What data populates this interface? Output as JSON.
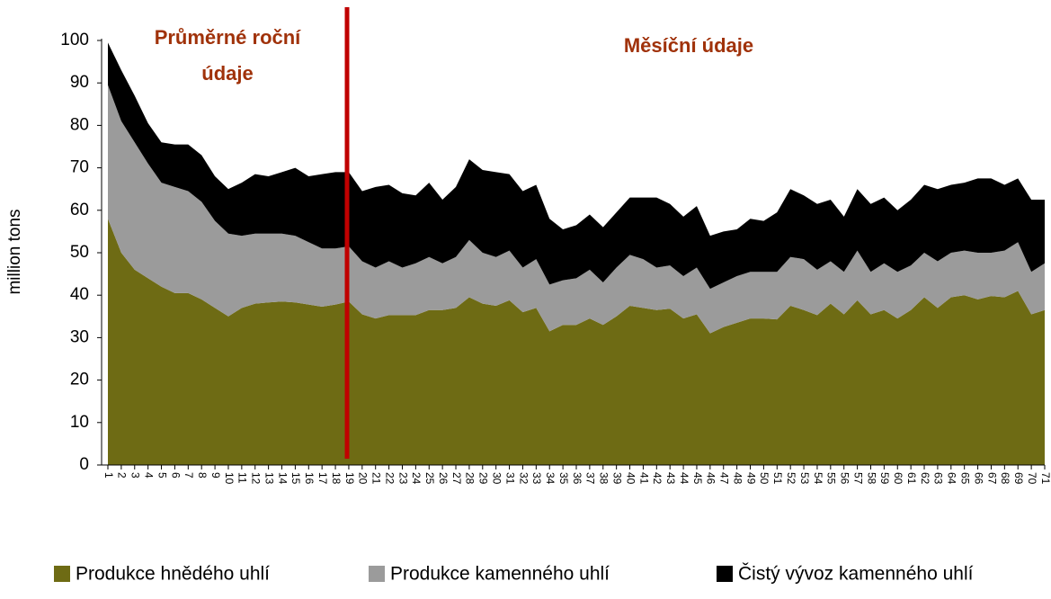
{
  "chart_data": {
    "type": "stacked_area",
    "y_label": "million tons",
    "annotations": [
      "Průměrné roční údaje",
      "Měsíční údaje"
    ],
    "categories": [
      "1",
      "2",
      "3",
      "4",
      "5",
      "6",
      "7",
      "8",
      "9",
      "10",
      "11",
      "12",
      "13",
      "14",
      "15",
      "16",
      "17",
      "18",
      "19",
      "20",
      "21",
      "22",
      "23",
      "24",
      "25",
      "26",
      "27",
      "28",
      "29",
      "30",
      "31",
      "32",
      "33",
      "34",
      "35",
      "36",
      "37",
      "38",
      "39",
      "40",
      "41",
      "42",
      "43",
      "44",
      "45",
      "46",
      "47",
      "48",
      "49",
      "50",
      "51",
      "52",
      "53",
      "54",
      "55",
      "56",
      "57",
      "58",
      "59",
      "60",
      "61",
      "62",
      "63",
      "64",
      "65",
      "66",
      "67",
      "68",
      "69",
      "70",
      "71"
    ],
    "series": [
      {
        "name": "Produkce hnědého uhlí",
        "color": "#6e6b14",
        "values": [
          58,
          50,
          46,
          44,
          42,
          40.5,
          40.5,
          39,
          37,
          35,
          37,
          38,
          38.3,
          38.5,
          38.3,
          37.8,
          37.3,
          37.8,
          38.5,
          35.5,
          34.5,
          35.3,
          35.3,
          35.3,
          36.5,
          36.5,
          37,
          39.5,
          38,
          37.5,
          38.8,
          36,
          37,
          31.5,
          33,
          33,
          34.5,
          33,
          35,
          37.5,
          37,
          36.5,
          36.8,
          34.5,
          35.5,
          31,
          32.5,
          33.5,
          34.5,
          34.5,
          34.3,
          37.5,
          36.5,
          35.3,
          38,
          35.5,
          38.8,
          35.5,
          36.5,
          34.5,
          36.5,
          39.5,
          37,
          39.5,
          40,
          39,
          39.8,
          39.5,
          41,
          35.5,
          36.5
        ]
      },
      {
        "name": "Produkce kamenného uhlí",
        "color": "#9b9b9b",
        "values": [
          31.5,
          31,
          30,
          27,
          24.5,
          25,
          24,
          23,
          20.5,
          19.5,
          17,
          16.5,
          16.2,
          16,
          15.7,
          14.7,
          13.7,
          13.2,
          13,
          12.5,
          12,
          12.7,
          11.2,
          12.2,
          12.5,
          11,
          12,
          13.5,
          12,
          11.5,
          11.7,
          10.5,
          11.5,
          11,
          10.5,
          11,
          11.5,
          10,
          11.5,
          12,
          11.5,
          10,
          10.2,
          10,
          11,
          10.5,
          10.5,
          11,
          11,
          11,
          11.2,
          11.5,
          12,
          10.7,
          10,
          10,
          11.7,
          10,
          11,
          11,
          10.5,
          10.5,
          11,
          10.5,
          10.5,
          11,
          10.2,
          11,
          11.5,
          10,
          11
        ]
      },
      {
        "name": "Čistý vývoz kamenného uhlí",
        "color": "#000000",
        "values": [
          10,
          12,
          11,
          9.5,
          9.5,
          10,
          11,
          11,
          10.5,
          10.5,
          12.5,
          14,
          13.5,
          14.5,
          16,
          15.5,
          17.5,
          18,
          17.5,
          16.5,
          19,
          18,
          17.5,
          16,
          17.5,
          15,
          16.5,
          19,
          19.5,
          20,
          18,
          18,
          17.5,
          15.5,
          12,
          12.5,
          13,
          13,
          13,
          13.5,
          14.5,
          16.5,
          14.5,
          14,
          14.5,
          12.5,
          12,
          11,
          12.5,
          12,
          14,
          16,
          15,
          15.5,
          14.5,
          13,
          14.5,
          16,
          15.5,
          14.5,
          15.5,
          16,
          17,
          16,
          16,
          17.5,
          17.5,
          15.5,
          15,
          17,
          15
        ]
      }
    ],
    "ylim": [
      0,
      100
    ],
    "yticks": [
      0,
      10,
      20,
      30,
      40,
      50,
      60,
      70,
      80,
      90,
      100
    ],
    "grid": false,
    "legend": "bottom"
  }
}
